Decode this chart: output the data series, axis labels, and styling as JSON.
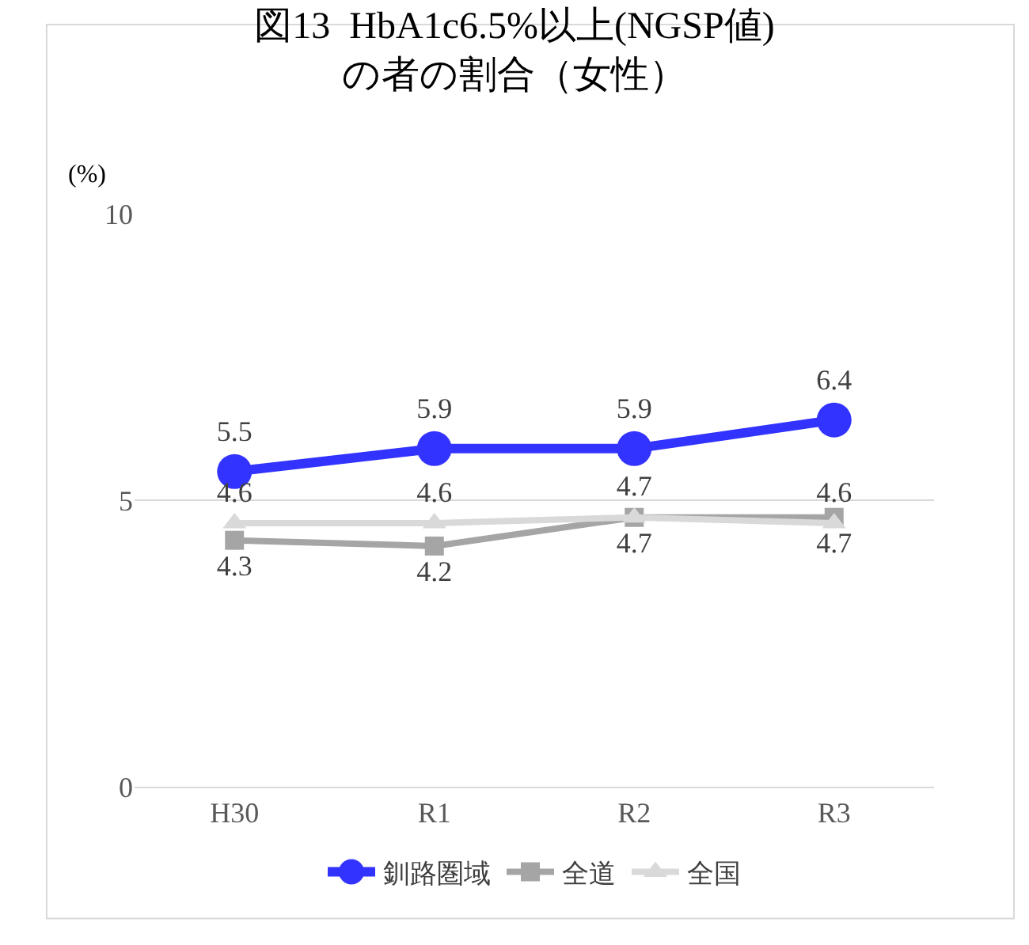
{
  "chart_data": {
    "type": "line",
    "title": "図13  HbA1c6.5%以上(NGSP値)\nの者の割合（女性）",
    "ylabel": "(%)",
    "categories": [
      "H30",
      "R1",
      "R2",
      "R3"
    ],
    "series": [
      {
        "name": "釧路圏域",
        "color": "#3333ff",
        "marker": "circle",
        "values": [
          5.5,
          5.9,
          5.9,
          6.4
        ]
      },
      {
        "name": "全道",
        "color": "#a5a5a5",
        "marker": "square",
        "values": [
          4.3,
          4.2,
          4.7,
          4.7
        ]
      },
      {
        "name": "全国",
        "color": "#d9d9d9",
        "marker": "triangle",
        "values": [
          4.6,
          4.6,
          4.7,
          4.6
        ]
      }
    ],
    "ylim": [
      0,
      10
    ],
    "yticks": [
      0,
      5,
      10
    ],
    "grid": "y",
    "legend": "bottom",
    "data_labels": true
  }
}
